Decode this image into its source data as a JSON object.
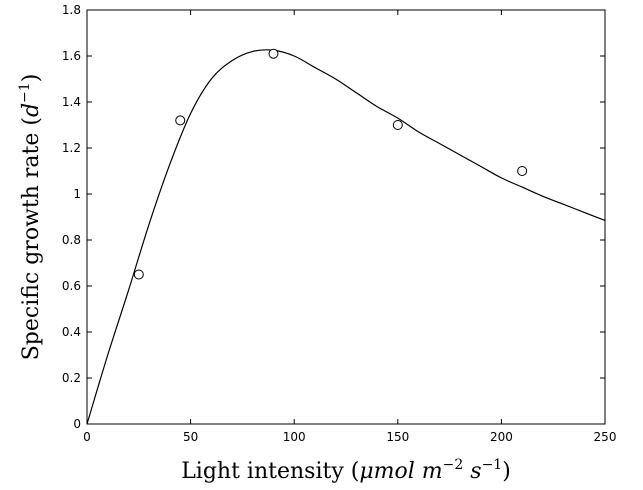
{
  "chart_data": {
    "type": "scatter",
    "xlabel": {
      "text": "Light intensity (",
      "mu": "μmol",
      "m": " m",
      "exp1": "−2",
      "s": " s",
      "exp2": "−1",
      "close": ")"
    },
    "ylabel": {
      "text": "Specific growth rate (",
      "d": "d",
      "exp": "−1",
      "close": ")"
    },
    "xlim": [
      0,
      250
    ],
    "ylim": [
      0,
      1.8
    ],
    "x_ticks": [
      {
        "value": 0,
        "label": "0"
      },
      {
        "value": 50,
        "label": "50"
      },
      {
        "value": 100,
        "label": "100"
      },
      {
        "value": 150,
        "label": "150"
      },
      {
        "value": 200,
        "label": "200"
      },
      {
        "value": 250,
        "label": "250"
      }
    ],
    "y_ticks": [
      {
        "value": 0,
        "label": "0"
      },
      {
        "value": 0.2,
        "label": "0.2"
      },
      {
        "value": 0.4,
        "label": "0.4"
      },
      {
        "value": 0.6,
        "label": "0.6"
      },
      {
        "value": 0.8,
        "label": "0.8"
      },
      {
        "value": 1.0,
        "label": "1"
      },
      {
        "value": 1.2,
        "label": "1.2"
      },
      {
        "value": 1.4,
        "label": "1.4"
      },
      {
        "value": 1.6,
        "label": "1.6"
      },
      {
        "value": 1.8,
        "label": "1.8"
      }
    ],
    "grid": false,
    "series": [
      {
        "kind": "scatter",
        "marker": "open-circle",
        "points": [
          {
            "x": 25,
            "y": 0.65
          },
          {
            "x": 45,
            "y": 1.32
          },
          {
            "x": 90,
            "y": 1.61
          },
          {
            "x": 150,
            "y": 1.3
          },
          {
            "x": 210,
            "y": 1.1
          }
        ]
      },
      {
        "kind": "line",
        "points": [
          {
            "x": 0,
            "y": 0.0
          },
          {
            "x": 10,
            "y": 0.3
          },
          {
            "x": 20,
            "y": 0.58
          },
          {
            "x": 30,
            "y": 0.87
          },
          {
            "x": 40,
            "y": 1.13
          },
          {
            "x": 50,
            "y": 1.35
          },
          {
            "x": 60,
            "y": 1.5
          },
          {
            "x": 70,
            "y": 1.58
          },
          {
            "x": 80,
            "y": 1.62
          },
          {
            "x": 90,
            "y": 1.625
          },
          {
            "x": 100,
            "y": 1.6
          },
          {
            "x": 110,
            "y": 1.55
          },
          {
            "x": 120,
            "y": 1.5
          },
          {
            "x": 130,
            "y": 1.44
          },
          {
            "x": 140,
            "y": 1.38
          },
          {
            "x": 150,
            "y": 1.33
          },
          {
            "x": 160,
            "y": 1.27
          },
          {
            "x": 170,
            "y": 1.22
          },
          {
            "x": 180,
            "y": 1.17
          },
          {
            "x": 190,
            "y": 1.12
          },
          {
            "x": 200,
            "y": 1.07
          },
          {
            "x": 210,
            "y": 1.03
          },
          {
            "x": 220,
            "y": 0.99
          },
          {
            "x": 230,
            "y": 0.955
          },
          {
            "x": 240,
            "y": 0.92
          },
          {
            "x": 250,
            "y": 0.885
          }
        ]
      }
    ]
  }
}
